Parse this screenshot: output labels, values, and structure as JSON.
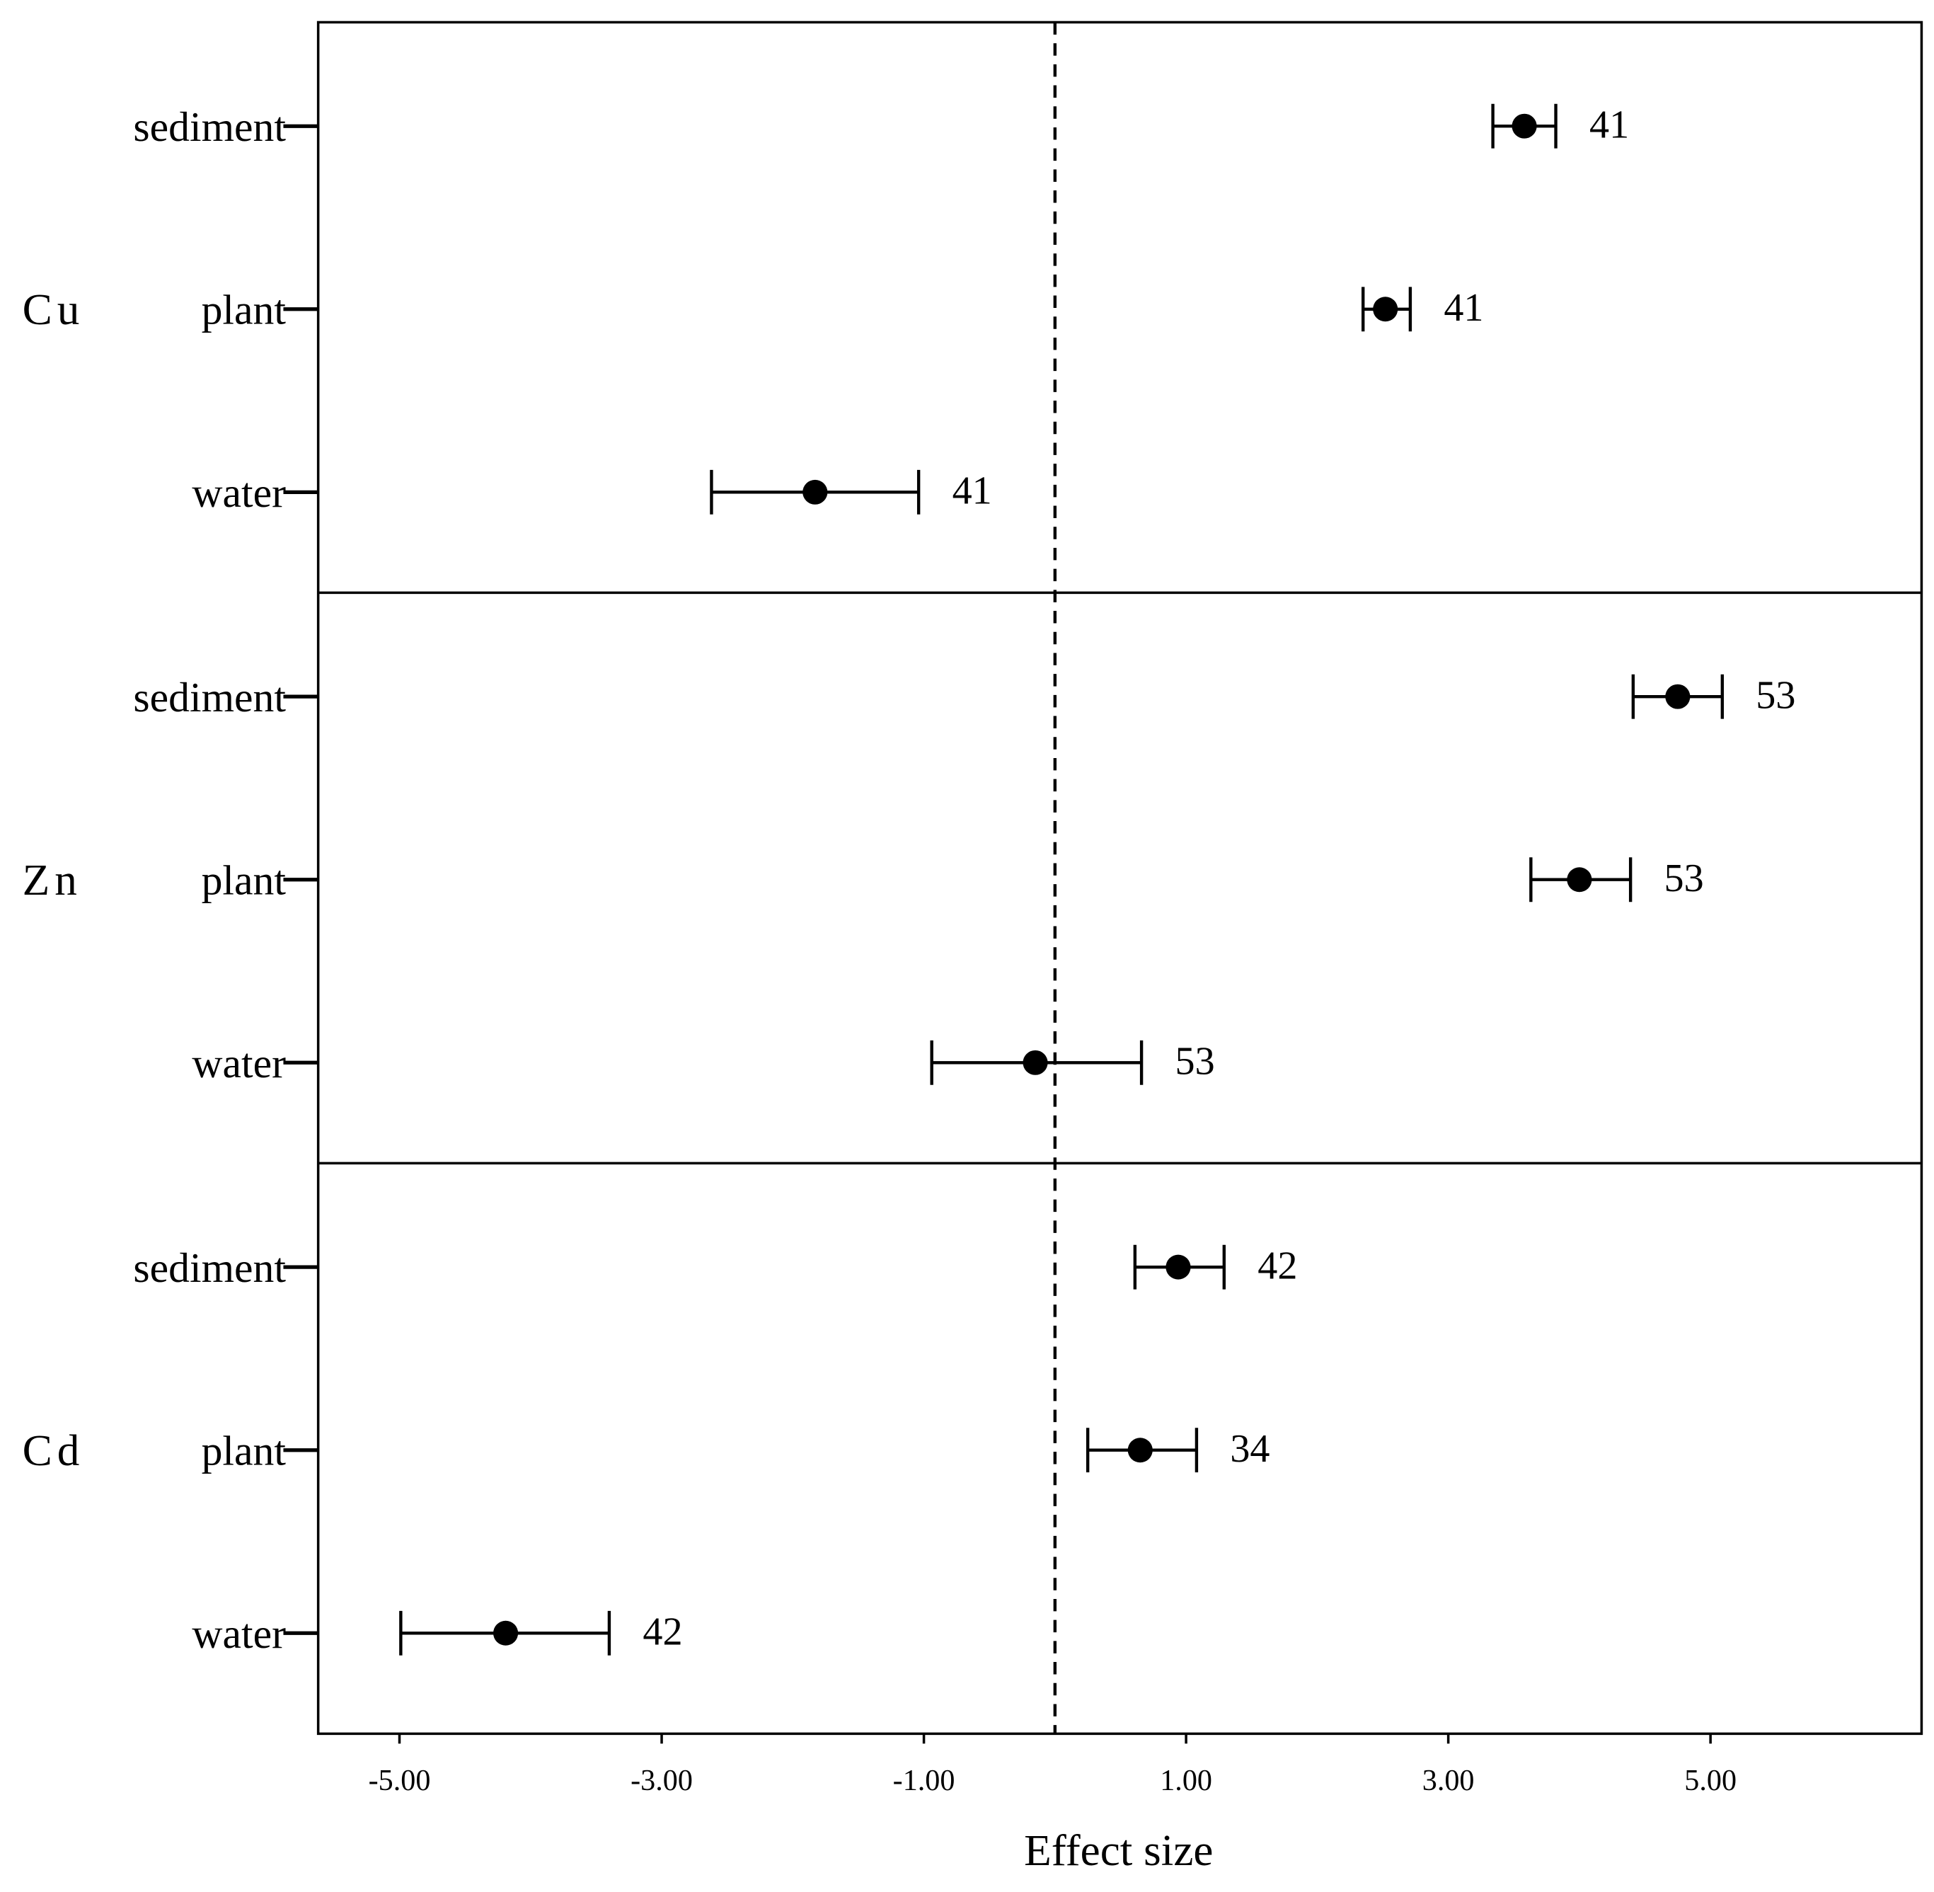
{
  "chart_data": {
    "type": "forest",
    "x_label": "Effect size",
    "xlim": [
      -5.62,
      6.61
    ],
    "xticks": [
      {
        "value": -5,
        "label": "-5.00"
      },
      {
        "value": -3,
        "label": "-3.00"
      },
      {
        "value": -1,
        "label": "-1.00"
      },
      {
        "value": 1,
        "label": "1.00"
      },
      {
        "value": 3,
        "label": "3.00"
      },
      {
        "value": 5,
        "label": "5.00"
      }
    ],
    "reference_line": 0,
    "color": "#000000",
    "groups": [
      {
        "name": "Cu",
        "categories": [
          "sediment",
          "plant",
          "water"
        ],
        "values": [
          3.58,
          2.52,
          -1.83
        ],
        "ci_low": [
          3.34,
          2.35,
          -2.62
        ],
        "ci_high": [
          3.82,
          2.71,
          -1.04
        ],
        "n": [
          41,
          41,
          41
        ]
      },
      {
        "name": "Zn",
        "categories": [
          "sediment",
          "plant",
          "water"
        ],
        "values": [
          4.75,
          4.0,
          -0.15
        ],
        "ci_low": [
          4.41,
          3.63,
          -0.94
        ],
        "ci_high": [
          5.09,
          4.39,
          0.66
        ],
        "n": [
          53,
          53,
          53
        ]
      },
      {
        "name": "Cd",
        "categories": [
          "sediment",
          "plant",
          "water"
        ],
        "values": [
          0.94,
          0.65,
          -4.19
        ],
        "ci_low": [
          0.61,
          0.25,
          -4.99
        ],
        "ci_high": [
          1.29,
          1.08,
          -3.4
        ],
        "n": [
          42,
          34,
          42
        ]
      }
    ]
  }
}
